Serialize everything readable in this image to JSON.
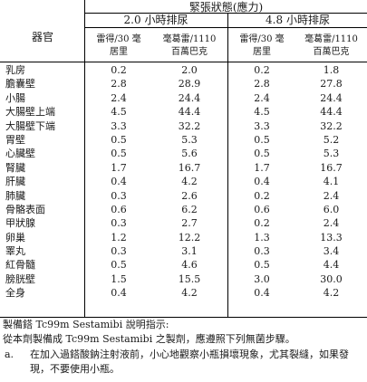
{
  "header": {
    "super_title": "緊張狀態(應力)",
    "group1": "2.0 小時排尿",
    "group2": "4.8 小時排尿",
    "organ_label": "器官",
    "unit_a_line1": "雷得/30 毫",
    "unit_a_line2": "居里",
    "unit_b_line1": "毫葛雷/1110",
    "unit_b_line2": "百萬巴克"
  },
  "rows": [
    {
      "organ": "乳房",
      "v1": "0.2",
      "v2": "2.0",
      "v3": "0.2",
      "v4": "1.8"
    },
    {
      "organ": "膽囊壁",
      "v1": "2.8",
      "v2": "28.9",
      "v3": "2.8",
      "v4": "27.8"
    },
    {
      "organ": "小腸",
      "v1": "2.4",
      "v2": "24.4",
      "v3": "2.4",
      "v4": "24.4"
    },
    {
      "organ": "大腸壁上端",
      "v1": "4.5",
      "v2": "44.4",
      "v3": "4.5",
      "v4": "44.4"
    },
    {
      "organ": "大腸壁下端",
      "v1": "3.3",
      "v2": "32.2",
      "v3": "3.3",
      "v4": "32.2"
    },
    {
      "organ": "胃壁",
      "v1": "0.5",
      "v2": "5.3",
      "v3": "0.5",
      "v4": "5.2"
    },
    {
      "organ": "心臟壁",
      "v1": "0.5",
      "v2": "5.6",
      "v3": "0.5",
      "v4": "5.3"
    },
    {
      "organ": "腎臟",
      "v1": "1.7",
      "v2": "16.7",
      "v3": "1.7",
      "v4": "16.7"
    },
    {
      "organ": "肝臟",
      "v1": "0.4",
      "v2": "4.2",
      "v3": "0.4",
      "v4": "4.1"
    },
    {
      "organ": "肺臟",
      "v1": "0.3",
      "v2": "2.6",
      "v3": "0.2",
      "v4": "2.4"
    },
    {
      "organ": "骨骼表面",
      "v1": "0.6",
      "v2": "6.2",
      "v3": "0.6",
      "v4": "6.0"
    },
    {
      "organ": "甲狀腺",
      "v1": "0.3",
      "v2": "2.7",
      "v3": "0.2",
      "v4": "2.4"
    },
    {
      "organ": "卵巢",
      "v1": "1.2",
      "v2": "12.2",
      "v3": "1.3",
      "v4": "13.3"
    },
    {
      "organ": "睪丸",
      "v1": "0.3",
      "v2": "3.1",
      "v3": "0.3",
      "v4": "3.4"
    },
    {
      "organ": "紅骨髓",
      "v1": "0.5",
      "v2": "4.6",
      "v3": "0.5",
      "v4": "4.4"
    },
    {
      "organ": "膀胱壁",
      "v1": "1.5",
      "v2": "15.5",
      "v3": "3.0",
      "v4": "30.0"
    },
    {
      "organ": "全身",
      "v1": "0.4",
      "v2": "4.2",
      "v3": "0.4",
      "v4": "4.2"
    }
  ],
  "footer": {
    "heading": "製備鎝 Tc99m Sestamibi 說明指示:",
    "line1": "從本劑製備成 Tc99m Sestamibi 之製劑，應遵照下列無菌步驟。",
    "item_a_mark": "a.",
    "item_a_text": "在加入過鎝酸鈉注射液前，小心地觀察小瓶損壞現象，尤其裂縫，如果發現，不要使用小瓶。"
  }
}
